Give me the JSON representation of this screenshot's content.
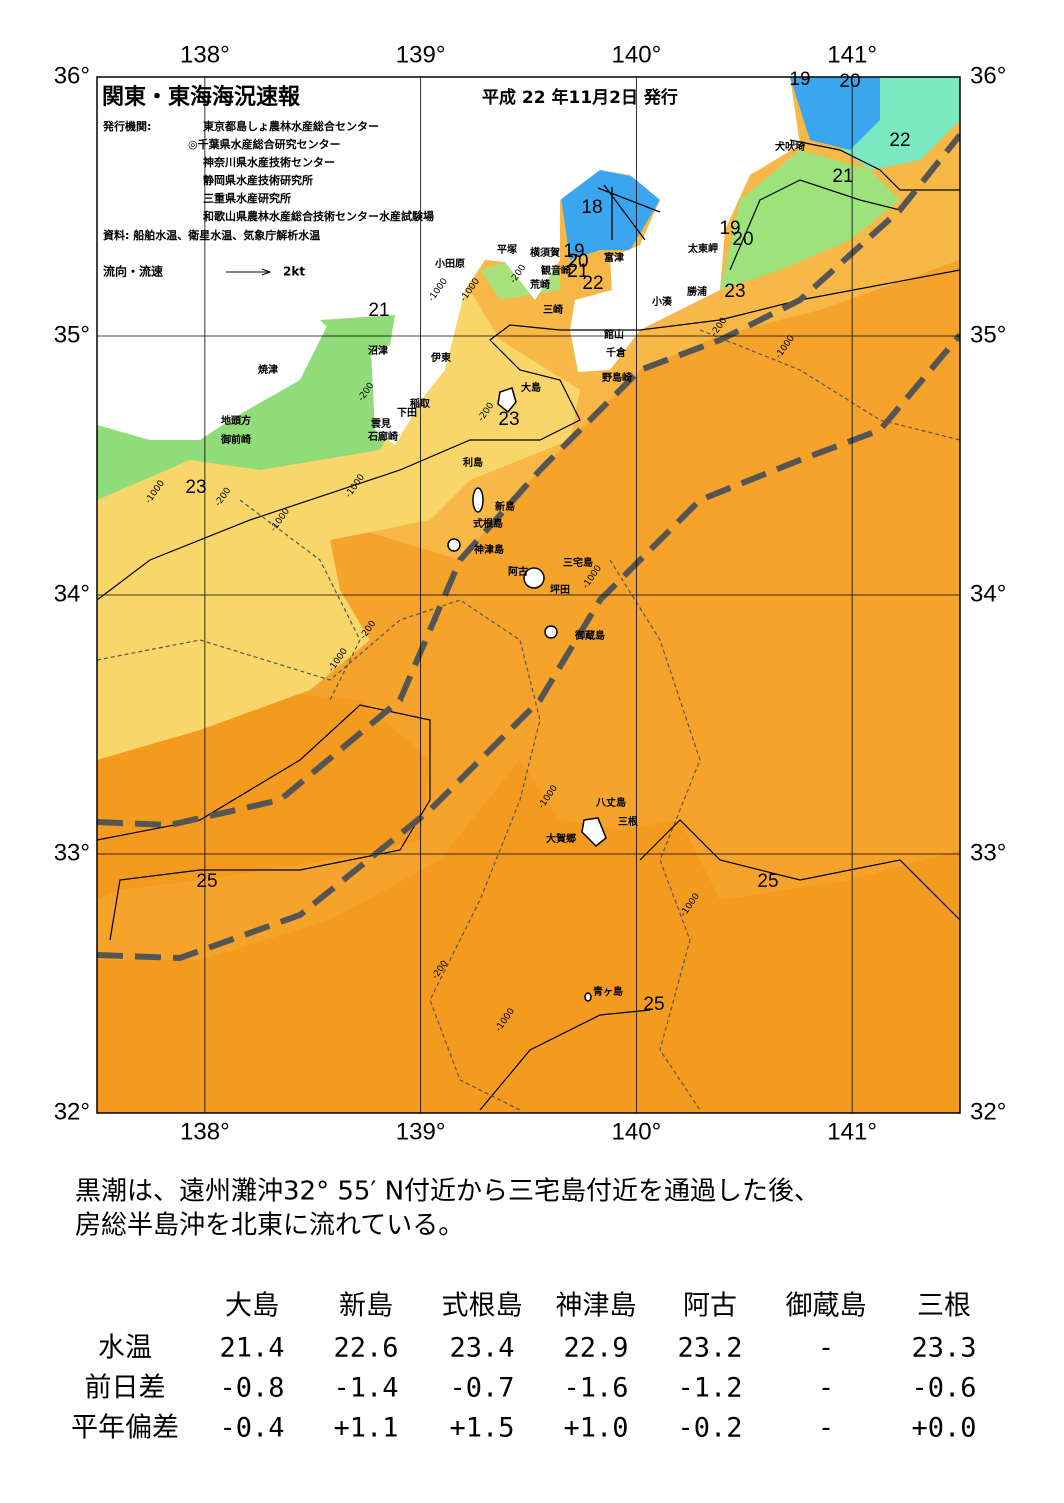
{
  "header": {
    "title": "関東・東海海況速報",
    "date": "平成 22 年11月2日 発行",
    "issuers_label": "発行機関:",
    "issuers": [
      "東京都島しょ農林水産総合センター",
      "◎千葉県水産総合研究センター",
      "神奈川県水産技術センター",
      "静岡県水産技術研究所",
      "三重県水産研究所",
      "和歌山県農林水産総合技術センター水産試験場"
    ],
    "sources": "資料: 船舶水温、衛星水温、気象庁解析水温",
    "legend_label": "流向・流速",
    "legend_speed": "2kt"
  },
  "map": {
    "xlim": [
      137.5,
      141.5
    ],
    "ylim": [
      32,
      36
    ],
    "lon_ticks": [
      {
        "value": 138,
        "label": "138°"
      },
      {
        "value": 139,
        "label": "139°"
      },
      {
        "value": 140,
        "label": "140°"
      },
      {
        "value": 141,
        "label": "141°"
      }
    ],
    "lat_ticks": [
      {
        "value": 36,
        "label": "36°"
      },
      {
        "value": 35,
        "label": "35°"
      },
      {
        "value": 34,
        "label": "34°"
      },
      {
        "value": 33,
        "label": "33°"
      },
      {
        "value": 32,
        "label": "32°"
      }
    ],
    "places": [
      "犬吠埼",
      "太東岬",
      "勝浦",
      "小湊",
      "富津",
      "館山",
      "千倉",
      "野島崎",
      "横須賀",
      "観音崎",
      "荒崎",
      "三崎",
      "平塚",
      "小田原",
      "沼津",
      "伊東",
      "焼津",
      "稲取",
      "下田",
      "雲見",
      "石廊崎",
      "地頭方",
      "御前崎",
      "大島",
      "利島",
      "新島",
      "式根島",
      "神津島",
      "三宅島",
      "阿古",
      "坪田",
      "御蔵島",
      "八丈島",
      "三根",
      "大賀郷",
      "青ヶ島"
    ],
    "contour_labels": [
      19,
      20,
      22,
      21,
      18,
      19,
      20,
      19,
      20,
      21,
      22,
      23,
      21,
      23,
      23,
      25,
      25,
      25
    ],
    "depth_labels": [
      -200,
      -1000,
      -200,
      -1000,
      -200,
      -1000,
      -200,
      -200,
      -1000,
      -1000,
      -200,
      -1000,
      -1000,
      -1000,
      -200,
      -1000,
      -1000,
      -1000
    ]
  },
  "body": {
    "lines": [
      "黒潮は、遠州灘沖32° 55′ N付近から三宅島付近を通過した後、",
      "房総半島沖を北東に流れている。"
    ]
  },
  "table": {
    "columns": [
      "大島",
      "新島",
      "式根島",
      "神津島",
      "阿古",
      "御蔵島",
      "三根"
    ],
    "rows": [
      {
        "label": "水温",
        "cells": [
          "21.4",
          "22.6",
          "23.4",
          "22.9",
          "23.2",
          "-",
          "23.3"
        ]
      },
      {
        "label": "前日差",
        "cells": [
          "-0.8",
          "-1.4",
          "-0.7",
          "-1.6",
          "-1.2",
          "-",
          "-0.6"
        ]
      },
      {
        "label": "平年偏差",
        "cells": [
          "-0.4",
          "+1.1",
          "+1.5",
          "+1.0",
          "-0.2",
          "-",
          "+0.0"
        ]
      }
    ]
  }
}
